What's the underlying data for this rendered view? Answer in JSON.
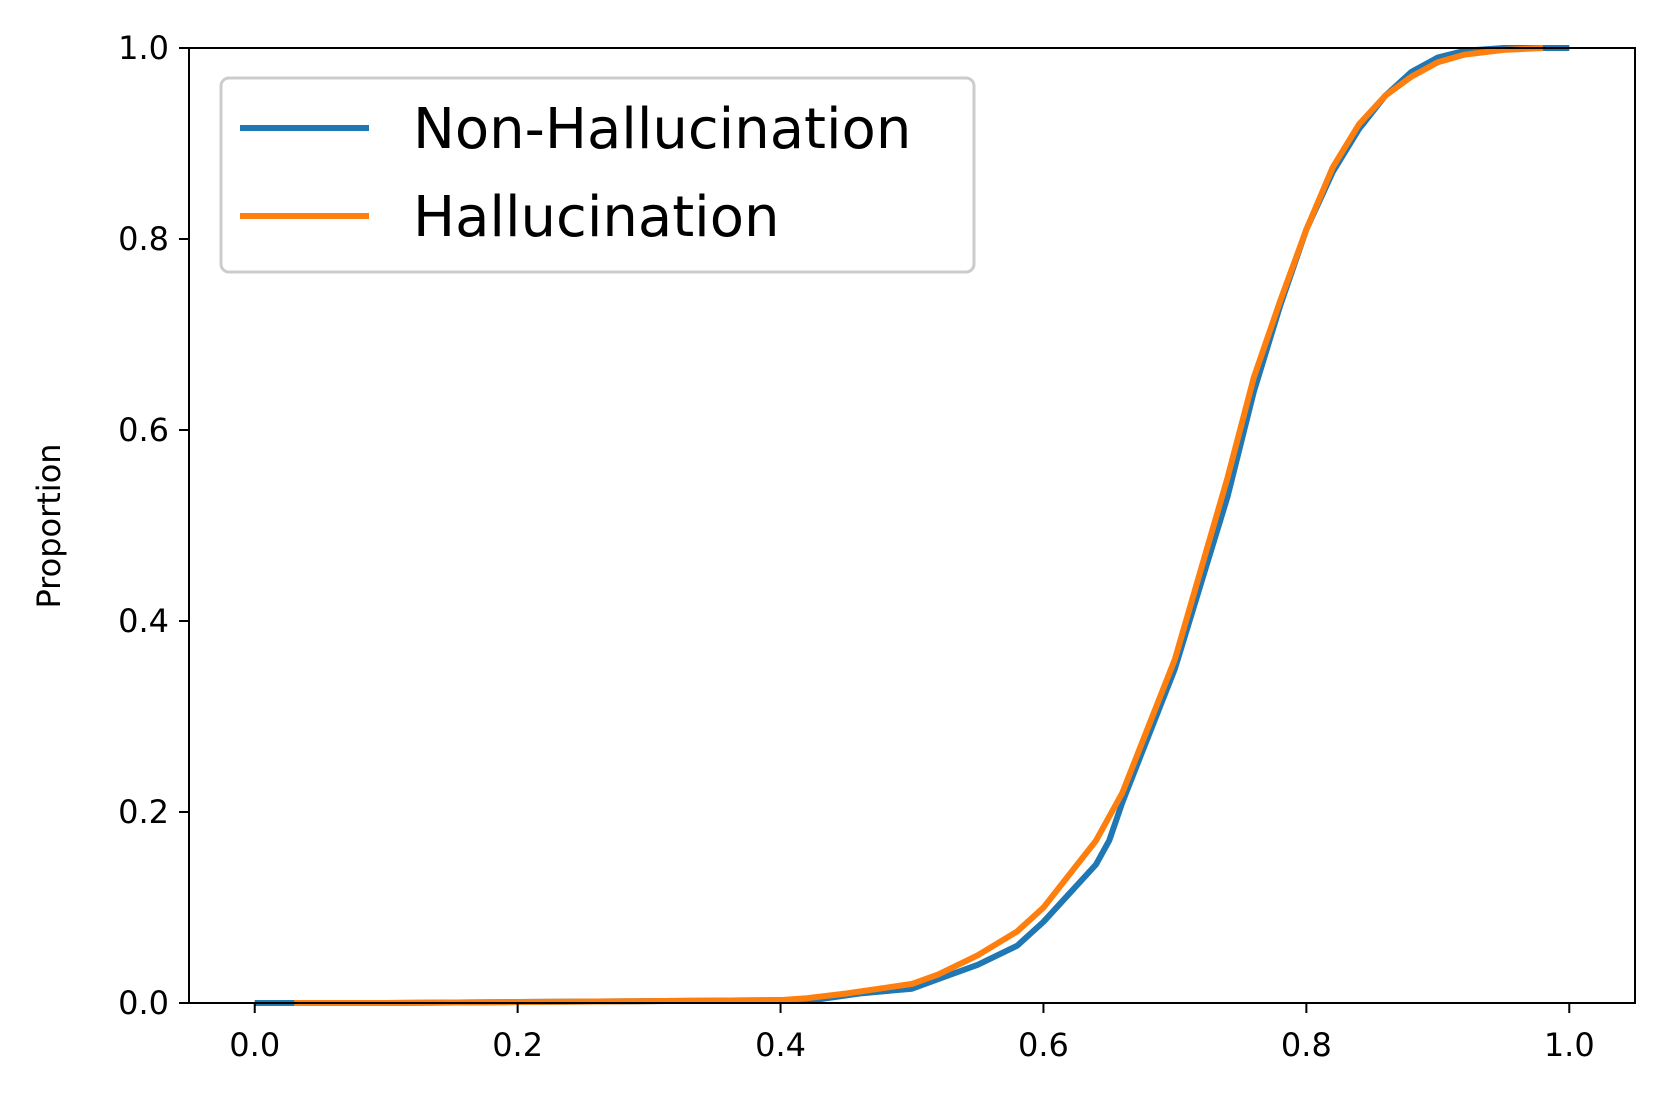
{
  "chart_data": {
    "type": "line",
    "title": "",
    "xlabel": "",
    "ylabel": "Proportion",
    "xlim": [
      -0.05,
      1.05
    ],
    "ylim": [
      0.0,
      1.0
    ],
    "xticks": [
      "0.0",
      "0.2",
      "0.4",
      "0.6",
      "0.8",
      "1.0"
    ],
    "yticks": [
      "0.0",
      "0.2",
      "0.4",
      "0.6",
      "0.8",
      "1.0"
    ],
    "grid": false,
    "legend_position": "upper-left",
    "series": [
      {
        "name": "Non-Hallucination",
        "color": "#1f77b4",
        "x": [
          0.0,
          0.03,
          0.1,
          0.2,
          0.3,
          0.4,
          0.43,
          0.46,
          0.5,
          0.52,
          0.55,
          0.58,
          0.6,
          0.62,
          0.64,
          0.65,
          0.66,
          0.68,
          0.7,
          0.72,
          0.74,
          0.76,
          0.78,
          0.8,
          0.82,
          0.84,
          0.86,
          0.88,
          0.9,
          0.92,
          0.95,
          0.98,
          1.0
        ],
        "y": [
          0.0,
          0.0,
          0.0,
          0.001,
          0.002,
          0.003,
          0.004,
          0.01,
          0.015,
          0.025,
          0.04,
          0.06,
          0.085,
          0.115,
          0.145,
          0.17,
          0.21,
          0.28,
          0.35,
          0.44,
          0.53,
          0.64,
          0.73,
          0.81,
          0.87,
          0.915,
          0.95,
          0.975,
          0.99,
          0.997,
          1.0,
          1.0,
          1.0
        ]
      },
      {
        "name": "Hallucination",
        "color": "#ff7f0e",
        "x": [
          0.03,
          0.1,
          0.2,
          0.3,
          0.4,
          0.42,
          0.45,
          0.5,
          0.52,
          0.55,
          0.58,
          0.6,
          0.62,
          0.64,
          0.66,
          0.68,
          0.7,
          0.72,
          0.74,
          0.76,
          0.78,
          0.8,
          0.82,
          0.84,
          0.86,
          0.88,
          0.9,
          0.92,
          0.95,
          0.98
        ],
        "y": [
          0.0,
          0.0,
          0.001,
          0.002,
          0.003,
          0.005,
          0.01,
          0.02,
          0.03,
          0.05,
          0.075,
          0.1,
          0.135,
          0.17,
          0.22,
          0.29,
          0.36,
          0.455,
          0.55,
          0.655,
          0.735,
          0.81,
          0.875,
          0.92,
          0.95,
          0.97,
          0.985,
          0.993,
          0.998,
          1.0
        ]
      }
    ]
  }
}
